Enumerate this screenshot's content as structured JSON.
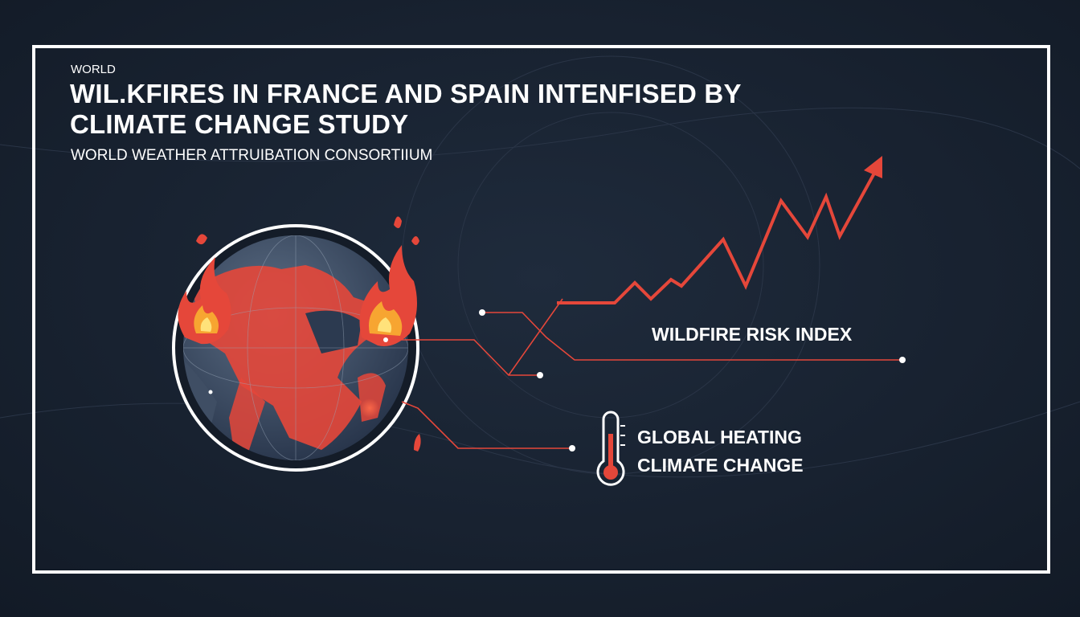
{
  "header": {
    "kicker": "WORLD",
    "title": [
      "WIL.KFIRES IN FRANCE AND SPAIN INTENFISED BY",
      "CLIMATE CHANGE STUDY"
    ],
    "subtitle": "WORLD WEATHER ATTRUIBATION CONSORTIIUM"
  },
  "graphic": {
    "risk_label": "WILDFIRE RISK INDEX",
    "thermometer_labels": [
      "GLOBAL HEATING",
      "CLIMATE CHANGE"
    ]
  }
}
